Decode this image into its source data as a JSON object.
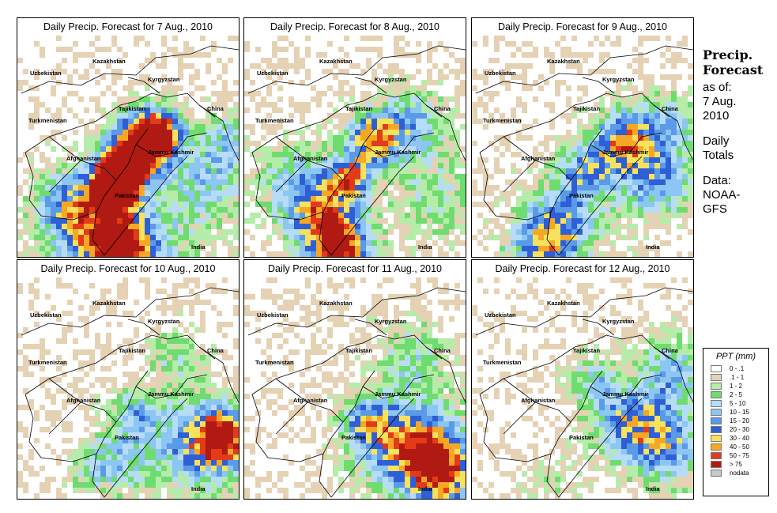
{
  "side_title": [
    "Precip.",
    "Forecast"
  ],
  "side_lines_1": [
    "as of:",
    "7 Aug.",
    "2010"
  ],
  "side_lines_2": [
    "Daily",
    "Totals"
  ],
  "side_lines_3": [
    "Data:",
    "NOAA-",
    "GFS"
  ],
  "legend": {
    "title": "PPT (mm)",
    "items": [
      {
        "label": "0 - .1",
        "color": "#ffffff"
      },
      {
        "label": ".1 - 1",
        "color": "#e5d2b5"
      },
      {
        "label": "1 - 2",
        "color": "#b6ecaa"
      },
      {
        "label": "2 - 5",
        "color": "#6fdc6f"
      },
      {
        "label": "5 - 10",
        "color": "#b7dcf7"
      },
      {
        "label": "10 - 15",
        "color": "#8cc6f2"
      },
      {
        "label": "15 - 20",
        "color": "#5a9ae8"
      },
      {
        "label": "20 - 30",
        "color": "#2f5fd6"
      },
      {
        "label": "30 - 40",
        "color": "#f6e25c"
      },
      {
        "label": "40 - 50",
        "color": "#f6a824"
      },
      {
        "label": "50 - 75",
        "color": "#e33a1a"
      },
      {
        "label": "> 75",
        "color": "#b01a12"
      },
      {
        "label": "nodata",
        "color": "#c8c8c8"
      }
    ]
  },
  "map_labels": {
    "kazakhstan": "Kazakhstan",
    "uzbekistan": "Uzbekistan",
    "kyrgyzstan": "Kyrgyzstan",
    "tajikistan": "Tajikistan",
    "china": "China",
    "turkmenistan": "Turkmenistan",
    "jammu_kashmir": "Jammu Kashmir",
    "afghanistan": "Afghanistan",
    "pakistan": "Pakistan",
    "india": "India"
  },
  "chart_data": [
    {
      "type": "heatmap",
      "title": "Daily Precip. Forecast for  7 Aug., 2010",
      "date": "7 Aug., 2010",
      "heavy_rain_areas": [
        "northeast Afghanistan",
        "northern Pakistan",
        "Jammu Kashmir",
        "southern Pakistan coast"
      ]
    },
    {
      "type": "heatmap",
      "title": "Daily Precip. Forecast for  8 Aug., 2010",
      "date": "8 Aug., 2010",
      "heavy_rain_areas": [
        "northern Pakistan",
        "Indus valley",
        "southern Pakistan coast"
      ]
    },
    {
      "type": "heatmap",
      "title": "Daily Precip. Forecast for  9 Aug., 2010",
      "date": "9 Aug., 2010",
      "heavy_rain_areas": [
        "Jammu Kashmir",
        "eastern Pakistan",
        "southern Pakistan"
      ]
    },
    {
      "type": "heatmap",
      "title": "Daily Precip. Forecast for  10 Aug., 2010",
      "date": "10 Aug., 2010",
      "heavy_rain_areas": [
        "northern India",
        "Jammu Kashmir"
      ]
    },
    {
      "type": "heatmap",
      "title": "Daily Precip. Forecast for  11 Aug., 2010",
      "date": "11 Aug., 2010",
      "heavy_rain_areas": [
        "northern India",
        "eastern Pakistan"
      ]
    },
    {
      "type": "heatmap",
      "title": "Daily Precip. Forecast for  12 Aug., 2010",
      "date": "12 Aug., 2010",
      "heavy_rain_areas": [
        "northern India",
        "Jammu Kashmir"
      ]
    }
  ]
}
